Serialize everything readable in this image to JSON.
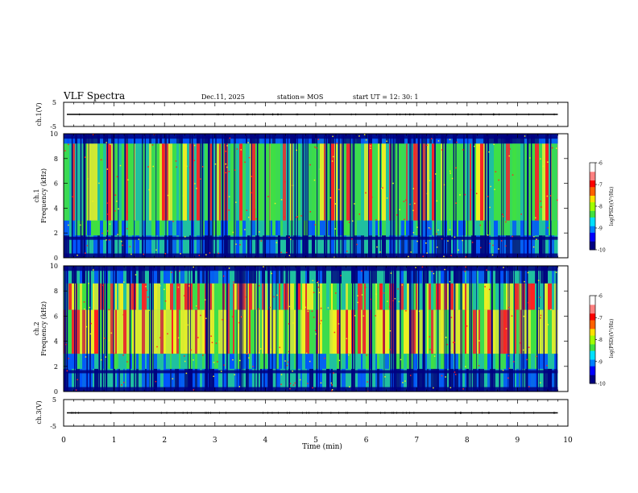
{
  "header": {
    "title": "VLF Spectra",
    "date": "Dec.11, 2025",
    "station": "station= MOS",
    "start": "start  UT  =    12: 30: 1"
  },
  "colors": {
    "background": "#ffffff",
    "axis": "#000000",
    "quiet": "#000080",
    "low": "#0050ff",
    "mid": "#20c0a0",
    "midhigh": "#40e040",
    "high": "#f0f020",
    "peak": "#ff2020"
  },
  "chart_data": [
    {
      "id": "ch1-waveform",
      "type": "line",
      "ylabel": "ch.1(V)",
      "ylim": [
        -5,
        5
      ],
      "yticks": [
        "5",
        "-5"
      ],
      "xlim": [
        0,
        10
      ],
      "trace_level": 0,
      "trace_end": 9.8
    },
    {
      "id": "ch1-spectrogram",
      "type": "heatmap",
      "ylabel_top": "ch.1",
      "ylabel": "Frequency (kHz)",
      "ylim": [
        0,
        10
      ],
      "yticks": [
        "0",
        "2",
        "4",
        "6",
        "8",
        "10"
      ],
      "xlim": [
        0,
        10
      ],
      "data_end": 9.8,
      "colorbar": {
        "label": "log(PSD)(V²/Hz)",
        "range": [
          -10,
          -6
        ],
        "ticks": [
          "-6",
          "-7",
          "-8",
          "-9",
          "-10"
        ]
      }
    },
    {
      "id": "ch2-spectrogram",
      "type": "heatmap",
      "ylabel_top": "ch.2",
      "ylabel": "Frequency (kHz)",
      "ylim": [
        0,
        10
      ],
      "yticks": [
        "0",
        "2",
        "4",
        "6",
        "8",
        "10"
      ],
      "xlim": [
        0,
        10
      ],
      "data_end": 9.8,
      "colorbar": {
        "label": "log(PSD)(V²/Hz)",
        "range": [
          -10,
          -6
        ],
        "ticks": [
          "-6",
          "-7",
          "-8",
          "-9",
          "-10"
        ]
      }
    },
    {
      "id": "ch3-waveform",
      "type": "line",
      "ylabel": "ch.3(V)",
      "ylim": [
        -5,
        5
      ],
      "yticks": [
        "5",
        "-5"
      ],
      "xlim": [
        0,
        10
      ],
      "trace_level": 0,
      "trace_end": 9.8
    }
  ],
  "xaxis": {
    "label": "Time (min)",
    "ticks": [
      "0",
      "1",
      "2",
      "3",
      "4",
      "5",
      "6",
      "7",
      "8",
      "9",
      "10"
    ]
  }
}
